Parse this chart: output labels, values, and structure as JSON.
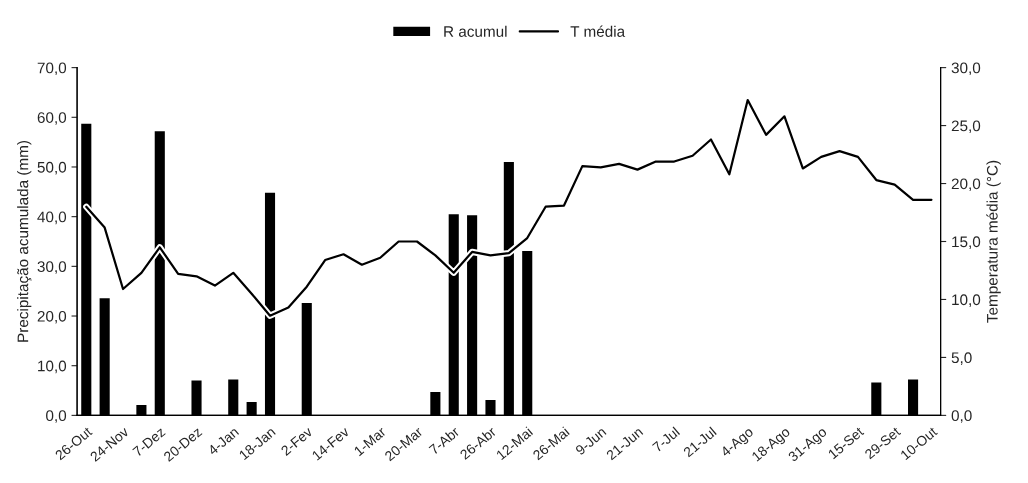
{
  "chart_data": {
    "type": "bar",
    "categories": [
      "26-Out",
      null,
      "24-Nov",
      null,
      "7-Dez",
      null,
      "20-Dez",
      null,
      "4-Jan",
      null,
      "18-Jan",
      null,
      "2-Fev",
      null,
      "14-Fev",
      null,
      "1-Mar",
      null,
      "20-Mar",
      null,
      "7-Abr",
      null,
      "26-Abr",
      null,
      "12-Mai",
      null,
      "26-Mai",
      null,
      "9-Jun",
      null,
      "21-Jun",
      null,
      "7-Jul",
      null,
      "21-Jul",
      null,
      "4-Ago",
      null,
      "18-Ago",
      null,
      "31-Ago",
      null,
      "15-Set",
      null,
      "29-Set",
      null,
      "10-Out"
    ],
    "series": [
      {
        "name": "R acumul",
        "color": "#000000",
        "values": [
          58.7,
          23.6,
          null,
          2.1,
          57.2,
          null,
          7.0,
          null,
          7.2,
          2.7,
          44.8,
          null,
          22.6,
          null,
          null,
          null,
          null,
          null,
          null,
          4.7,
          40.5,
          40.3,
          3.1,
          51.0,
          33.1,
          null,
          null,
          null,
          null,
          null,
          null,
          null,
          null,
          null,
          null,
          null,
          null,
          null,
          null,
          null,
          null,
          null,
          null,
          6.6,
          null,
          7.2,
          null
        ]
      },
      {
        "name": "T média",
        "type": "line",
        "axis": "y2",
        "color": "#000000",
        "values": [
          18.0,
          16.2,
          10.9,
          12.3,
          14.5,
          12.2,
          12.0,
          11.2,
          12.3,
          10.5,
          8.6,
          9.3,
          11.1,
          13.4,
          13.9,
          13.0,
          13.6,
          15.0,
          15.0,
          13.8,
          12.3,
          14.1,
          13.8,
          14.0,
          15.3,
          18.0,
          18.1,
          21.5,
          21.4,
          21.7,
          21.2,
          21.9,
          21.9,
          22.4,
          23.8,
          20.8,
          27.2,
          24.2,
          25.8,
          21.3,
          22.3,
          22.8,
          22.3,
          20.3,
          19.9,
          18.6,
          18.6
        ]
      }
    ],
    "ylabel": "Precipitação acumulada (mm)",
    "y2label": "Temperatura média (°C)",
    "ylim": [
      0,
      70
    ],
    "yticks": [
      {
        "value": 0,
        "label": "0,0"
      },
      {
        "value": 10,
        "label": "10,0"
      },
      {
        "value": 20,
        "label": "20,0"
      },
      {
        "value": 30,
        "label": "30,0"
      },
      {
        "value": 40,
        "label": "40,0"
      },
      {
        "value": 50,
        "label": "50,0"
      },
      {
        "value": 60,
        "label": "60,0"
      },
      {
        "value": 70,
        "label": "70,0"
      }
    ],
    "y2lim": [
      0,
      30
    ],
    "y2ticks": [
      {
        "value": 0,
        "label": "0,0"
      },
      {
        "value": 5,
        "label": "5,0"
      },
      {
        "value": 10,
        "label": "10,0"
      },
      {
        "value": 15,
        "label": "15,0"
      },
      {
        "value": 20,
        "label": "20,0"
      },
      {
        "value": 25,
        "label": "25,0"
      },
      {
        "value": 30,
        "label": "30,0"
      }
    ],
    "legend": "top",
    "grid": false,
    "marker": "none",
    "line_style": "solid"
  }
}
